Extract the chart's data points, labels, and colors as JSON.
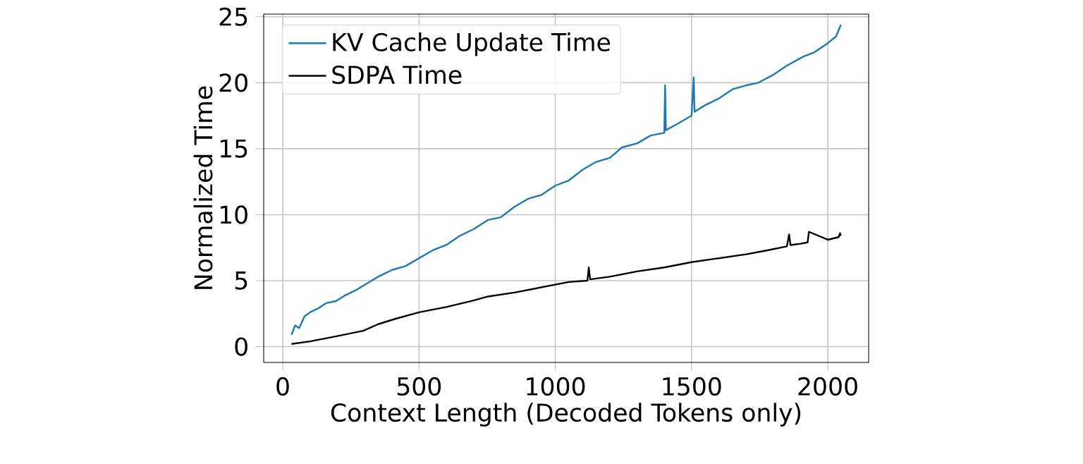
{
  "chart_data": {
    "type": "line",
    "xlabel": "Context Length (Decoded Tokens only)",
    "ylabel": "Normalized Time",
    "xlim": [
      -70,
      2150
    ],
    "ylim": [
      -1.2,
      25.2
    ],
    "xticks": [
      0,
      500,
      1000,
      1500,
      2000
    ],
    "yticks": [
      0,
      5,
      10,
      15,
      20,
      25
    ],
    "grid": true,
    "legend": "top left",
    "marker": "none",
    "line_style": "solid",
    "series": [
      {
        "name": "KV Cache Update Time",
        "color": "#1f77b4",
        "x": [
          32,
          45,
          60,
          80,
          100,
          130,
          160,
          195,
          230,
          270,
          310,
          350,
          400,
          450,
          500,
          550,
          600,
          650,
          700,
          753,
          800,
          850,
          900,
          950,
          1000,
          1050,
          1100,
          1150,
          1200,
          1245,
          1300,
          1350,
          1400,
          1403,
          1406,
          1450,
          1500,
          1508,
          1511,
          1550,
          1600,
          1650,
          1700,
          1745,
          1800,
          1850,
          1912,
          1950,
          2000,
          2030,
          2048
        ],
        "values": [
          0.9,
          1.6,
          1.4,
          2.3,
          2.6,
          2.9,
          3.3,
          3.45,
          3.9,
          4.3,
          4.8,
          5.3,
          5.8,
          6.1,
          6.7,
          7.3,
          7.7,
          8.4,
          8.9,
          9.6,
          9.8,
          10.6,
          11.2,
          11.5,
          12.2,
          12.6,
          13.4,
          14.0,
          14.3,
          15.1,
          15.4,
          16.0,
          16.2,
          19.8,
          16.4,
          16.9,
          17.5,
          20.4,
          17.8,
          18.3,
          18.8,
          19.5,
          19.8,
          20.0,
          20.6,
          21.3,
          22.0,
          22.3,
          23.0,
          23.5,
          24.4
        ]
      },
      {
        "name": "SDPA Time",
        "color": "#000000",
        "x": [
          32,
          100,
          200,
          295,
          350,
          412,
          500,
          600,
          700,
          753,
          850,
          950,
          1000,
          1050,
          1118,
          1123,
          1128,
          1200,
          1300,
          1400,
          1500,
          1600,
          1700,
          1778,
          1850,
          1858,
          1863,
          1900,
          1926,
          1931,
          2000,
          2040,
          2045,
          2048
        ],
        "values": [
          0.2,
          0.4,
          0.8,
          1.2,
          1.7,
          2.1,
          2.6,
          3.0,
          3.5,
          3.8,
          4.1,
          4.5,
          4.7,
          4.9,
          5.0,
          6.0,
          5.1,
          5.3,
          5.7,
          6.0,
          6.4,
          6.7,
          7.0,
          7.3,
          7.6,
          8.5,
          7.7,
          7.8,
          7.9,
          8.7,
          8.1,
          8.3,
          8.6,
          8.4
        ]
      }
    ]
  }
}
